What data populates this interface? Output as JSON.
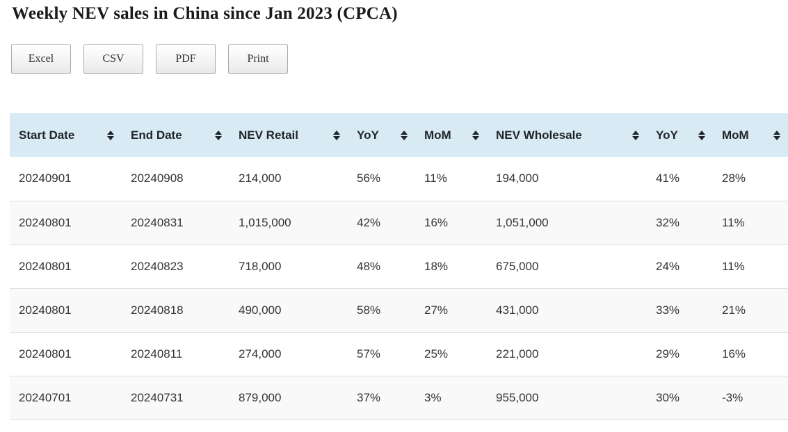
{
  "page": {
    "title": "Weekly NEV sales in China since Jan 2023 (CPCA)"
  },
  "toolbar": {
    "buttons": [
      {
        "id": "excel",
        "label": "Excel"
      },
      {
        "id": "csv",
        "label": "CSV"
      },
      {
        "id": "pdf",
        "label": "PDF"
      },
      {
        "id": "print",
        "label": "Print"
      }
    ]
  },
  "table": {
    "columns": [
      {
        "label": "Start Date",
        "sortable": true
      },
      {
        "label": "End Date",
        "sortable": true
      },
      {
        "label": "NEV Retail",
        "sortable": true
      },
      {
        "label": "YoY",
        "sortable": true
      },
      {
        "label": "MoM",
        "sortable": true
      },
      {
        "label": "NEV Wholesale",
        "sortable": true
      },
      {
        "label": "YoY",
        "sortable": true
      },
      {
        "label": "MoM",
        "sortable": true
      }
    ],
    "rows": [
      [
        "20240901",
        "20240908",
        "214,000",
        "56%",
        "11%",
        "194,000",
        "41%",
        "28%"
      ],
      [
        "20240801",
        "20240831",
        "1,015,000",
        "42%",
        "16%",
        "1,051,000",
        "32%",
        "11%"
      ],
      [
        "20240801",
        "20240823",
        "718,000",
        "48%",
        "18%",
        "675,000",
        "24%",
        "11%"
      ],
      [
        "20240801",
        "20240818",
        "490,000",
        "58%",
        "27%",
        "431,000",
        "33%",
        "21%"
      ],
      [
        "20240801",
        "20240811",
        "274,000",
        "57%",
        "25%",
        "221,000",
        "29%",
        "16%"
      ],
      [
        "20240701",
        "20240731",
        "879,000",
        "37%",
        "3%",
        "955,000",
        "30%",
        "-3%"
      ]
    ]
  },
  "colors": {
    "header_bg": "#d8eaf4",
    "row_alt_bg": "#f9f9f9",
    "row_border": "#dddddd",
    "button_border": "#aaaaaa",
    "text": "#333333"
  }
}
